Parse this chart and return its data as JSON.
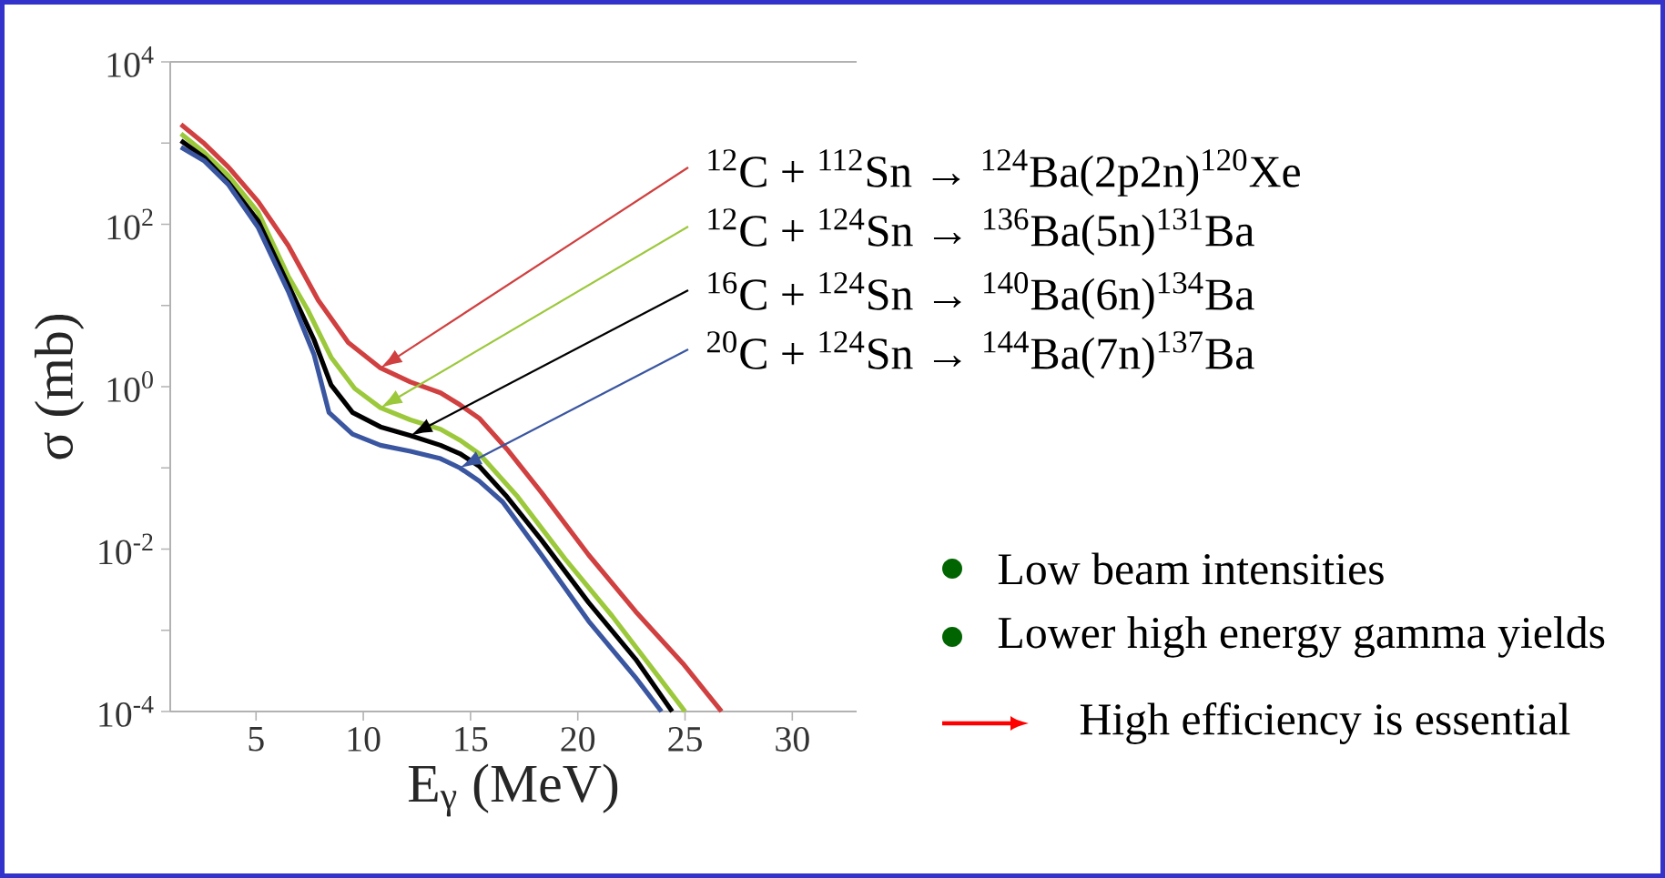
{
  "chart_data": {
    "type": "line",
    "xlabel": "E$_{γ}$ (MeV)",
    "ylabel": "σ (mb)",
    "log": "y",
    "marker": "none",
    "line_style": "solid",
    "xlim": [
      1,
      33
    ],
    "xticks": [
      5,
      10,
      15,
      20,
      25,
      30
    ],
    "ylim": [
      0.0001,
      10000
    ],
    "yticks": [
      {
        "value": 0.0001,
        "label": "10$^{-4}$"
      },
      {
        "value": 0.001,
        "label": null
      },
      {
        "value": 0.01,
        "label": "10$^{-2}$"
      },
      {
        "value": 0.1,
        "label": null
      },
      {
        "value": 1,
        "label": "10$^{0}$"
      },
      {
        "value": 10,
        "label": null
      },
      {
        "value": 100,
        "label": "10$^{2}$"
      },
      {
        "value": 1000,
        "label": null
      },
      {
        "value": 10000,
        "label": "10$^{4}$"
      }
    ],
    "series": [
      {
        "name": "$^{12}$C + $^{112}$Sn → $^{124}$Ba(2p2n)$^{120}$Xe",
        "color": "#d04040",
        "x": [
          1.5,
          2.6,
          3.7,
          5.1,
          6.5,
          7.9,
          9.3,
          10.8,
          12.2,
          13.6,
          14.5,
          15.4,
          16.7,
          18.3,
          20.5,
          22.7,
          24.9,
          26.7
        ],
        "values": [
          1700,
          980,
          510,
          190,
          55,
          11.6,
          3.5,
          1.7,
          1.14,
          0.84,
          0.6,
          0.41,
          0.17,
          0.05,
          0.0085,
          0.0017,
          0.00039,
          0.0001
        ]
      },
      {
        "name": "$^{12}$C + $^{124}$Sn → $^{136}$Ba(5n)$^{131}$Ba",
        "color": "#9cc83c",
        "x": [
          1.5,
          2.6,
          3.7,
          5.1,
          6.5,
          7.4,
          8.5,
          9.6,
          10.8,
          12.2,
          13.6,
          14.5,
          15.4,
          17.2,
          19.4,
          21.6,
          23.8,
          25.0
        ],
        "values": [
          1300,
          760,
          400,
          140,
          23,
          8.9,
          2.3,
          0.95,
          0.55,
          0.39,
          0.3,
          0.22,
          0.15,
          0.044,
          0.0076,
          0.0015,
          0.00026,
          0.0001
        ]
      },
      {
        "name": "$^{16}$C + $^{124}$Sn → $^{140}$Ba(6n)$^{134}$Ba",
        "color": "#000000",
        "x": [
          1.5,
          2.6,
          3.7,
          5.1,
          6.5,
          7.7,
          8.5,
          9.5,
          10.8,
          12.2,
          13.6,
          14.5,
          15.4,
          16.7,
          18.3,
          20.5,
          22.7,
          24.4
        ],
        "values": [
          1070,
          660,
          330,
          110,
          18,
          3.8,
          1.05,
          0.48,
          0.32,
          0.25,
          0.19,
          0.15,
          0.105,
          0.044,
          0.013,
          0.0022,
          0.00044,
          0.0001
        ]
      },
      {
        "name": "$^{20}$C + $^{124}$Sn → $^{144}$Ba(7n)$^{137}$Ba",
        "color": "#3a56a0",
        "x": [
          1.5,
          2.6,
          3.7,
          5.1,
          6.5,
          7.7,
          8.4,
          9.5,
          10.8,
          12.2,
          13.6,
          14.5,
          15.4,
          16.5,
          18.3,
          20.5,
          22.7,
          23.9
        ],
        "values": [
          890,
          600,
          310,
          91,
          15,
          2.5,
          0.48,
          0.26,
          0.19,
          0.16,
          0.13,
          0.1,
          0.069,
          0.038,
          0.0085,
          0.0013,
          0.00026,
          0.0001
        ]
      }
    ],
    "annotations": [
      "Low beam intensities",
      "Lower high energy gamma yields",
      "High efficiency is essential"
    ]
  }
}
